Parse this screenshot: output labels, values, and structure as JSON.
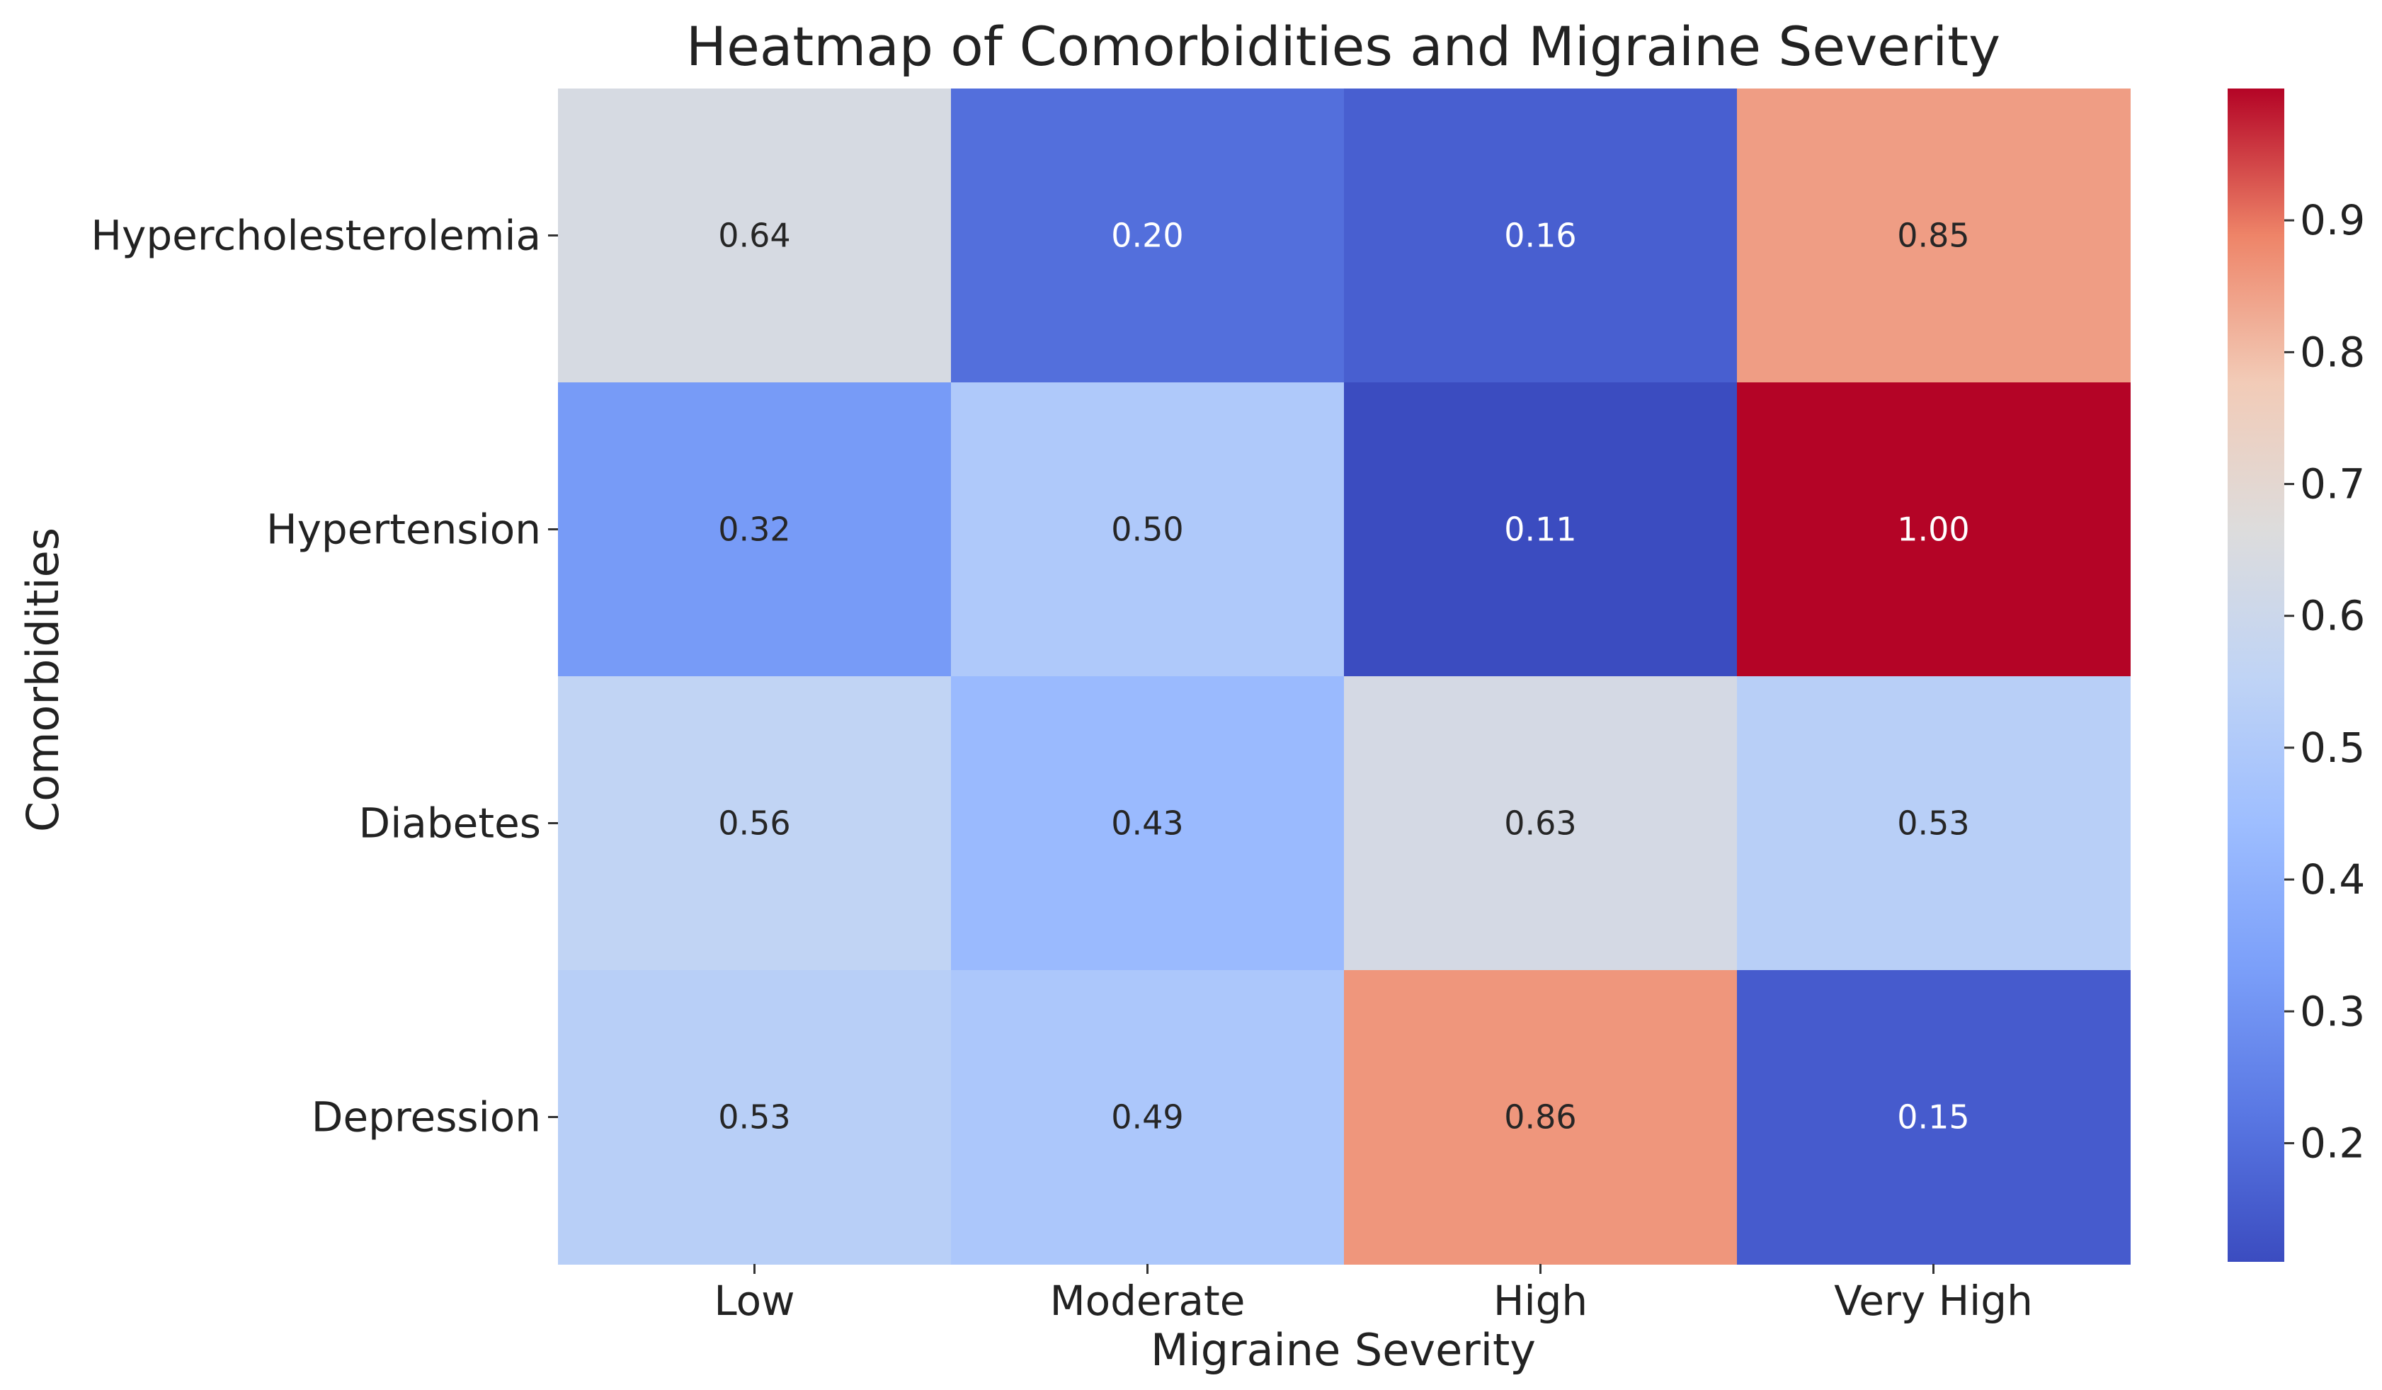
{
  "chart_data": {
    "type": "heatmap",
    "title": "Heatmap of Comorbidities and Migraine Severity",
    "xlabel": "Migraine Severity",
    "ylabel": "Comorbidities",
    "columns": [
      "Low",
      "Moderate",
      "High",
      "Very High"
    ],
    "rows": [
      "Hypercholesterolemia",
      "Hypertension",
      "Diabetes",
      "Depression"
    ],
    "values": [
      [
        0.64,
        0.2,
        0.16,
        0.85
      ],
      [
        0.32,
        0.5,
        0.11,
        1.0
      ],
      [
        0.56,
        0.43,
        0.63,
        0.53
      ],
      [
        0.53,
        0.49,
        0.86,
        0.15
      ]
    ],
    "annotation_labels": [
      [
        "0.64",
        "0.20",
        "0.16",
        "0.85"
      ],
      [
        "0.32",
        "0.50",
        "0.11",
        "1.00"
      ],
      [
        "0.56",
        "0.43",
        "0.63",
        "0.53"
      ],
      [
        "0.53",
        "0.49",
        "0.86",
        "0.15"
      ]
    ],
    "colormap": "coolwarm",
    "colorbar": {
      "range": [
        0.11,
        1.0
      ],
      "ticks": [
        0.2,
        0.3,
        0.4,
        0.5,
        0.6,
        0.7,
        0.8,
        0.9
      ],
      "tick_labels": [
        "0.2",
        "0.3",
        "0.4",
        "0.5",
        "0.6",
        "0.7",
        "0.8",
        "0.9"
      ]
    }
  }
}
